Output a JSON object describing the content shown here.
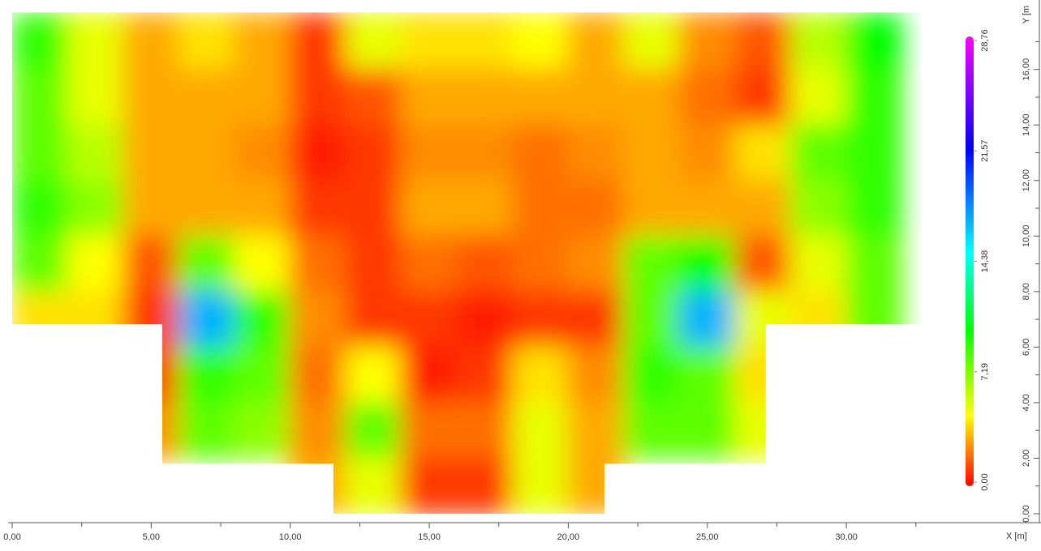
{
  "chart_data": {
    "type": "heatmap",
    "x": [
      1,
      3,
      5,
      7,
      9,
      11,
      13,
      15,
      17,
      19,
      21,
      23,
      25,
      27,
      29,
      31
    ],
    "y": [
      17,
      15,
      13,
      11,
      9,
      7,
      5,
      3,
      1
    ],
    "z": [
      [
        9,
        5,
        3,
        4,
        3,
        1,
        5,
        4,
        4,
        4.5,
        3,
        5,
        2.5,
        1.5,
        6,
        10
      ],
      [
        8,
        5,
        3,
        3,
        3,
        1,
        1.5,
        3,
        3,
        3,
        3,
        3,
        2,
        1,
        5,
        9
      ],
      [
        8,
        6,
        3,
        3,
        2.5,
        0.5,
        1,
        2.5,
        2.5,
        2,
        2.5,
        3,
        2.5,
        4,
        8,
        9
      ],
      [
        9,
        7,
        3,
        3,
        3,
        1,
        1,
        3,
        3,
        2,
        2,
        3,
        3,
        3,
        7,
        9
      ],
      [
        8,
        4.5,
        1.5,
        8,
        4.5,
        2,
        1,
        2,
        1.5,
        2,
        2.5,
        8,
        10,
        1.5,
        5,
        8
      ],
      [
        4,
        4,
        1,
        17,
        9,
        2.5,
        1,
        1,
        0.5,
        1,
        1,
        8,
        17,
        5,
        4,
        8
      ],
      [
        null,
        null,
        1,
        9,
        8,
        2,
        4.5,
        0.5,
        1,
        4,
        2.5,
        9,
        8,
        4,
        null,
        null
      ],
      [
        null,
        null,
        2.5,
        8,
        7,
        2.5,
        8,
        2,
        2,
        5,
        3,
        8,
        8,
        5,
        null,
        null
      ],
      [
        null,
        null,
        null,
        null,
        null,
        3,
        5,
        1,
        1,
        5,
        3,
        null,
        null,
        null,
        null,
        null
      ]
    ],
    "outline": {
      "x": [
        0,
        32.7,
        32.7,
        27.1,
        27.1,
        21.3,
        21.3,
        11.55,
        11.55,
        5.4,
        5.4,
        0
      ],
      "y": [
        18.05,
        18.05,
        6.82,
        6.82,
        1.8,
        1.8,
        0,
        0,
        1.8,
        1.8,
        6.82,
        6.82
      ]
    },
    "xlim": [
      0,
      37
    ],
    "ylim": [
      0,
      18.5
    ],
    "xticks": [
      {
        "value": 0,
        "label": "0,00"
      },
      {
        "value": 5,
        "label": "5,00"
      },
      {
        "value": 10,
        "label": "10,00"
      },
      {
        "value": 15,
        "label": "15,00"
      },
      {
        "value": 20,
        "label": "20,00"
      },
      {
        "value": 25,
        "label": "25,00"
      },
      {
        "value": 30,
        "label": "30,00"
      }
    ],
    "xminorticks": [
      2.5,
      7.5,
      12.5,
      17.5,
      22.5,
      27.5,
      32.5
    ],
    "yticks": [
      {
        "value": 0,
        "label": "0,00"
      },
      {
        "value": 2,
        "label": "2,00"
      },
      {
        "value": 4,
        "label": "4,00"
      },
      {
        "value": 6,
        "label": "6,00"
      },
      {
        "value": 8,
        "label": "8,00"
      },
      {
        "value": 10,
        "label": "10,00"
      },
      {
        "value": 12,
        "label": "12,00"
      },
      {
        "value": 14,
        "label": "14,00"
      },
      {
        "value": 16,
        "label": "16,00"
      }
    ],
    "yminorticks": [
      1,
      3,
      5,
      7,
      9,
      11,
      13,
      15,
      17
    ],
    "xlabel": "X [m]",
    "ylabel": "Y [m",
    "zlim": [
      0,
      28.76
    ],
    "colorscale": [
      [
        0,
        "#ff0000"
      ],
      [
        2.5,
        "#ff8c00"
      ],
      [
        4.5,
        "#ffff00"
      ],
      [
        10,
        "#00ff00"
      ],
      [
        15,
        "#00ffff"
      ],
      [
        21.57,
        "#0000ff"
      ],
      [
        28.76,
        "#ff00ff"
      ]
    ],
    "cticks": [
      {
        "value": 0,
        "label": "0,00"
      },
      {
        "value": 7.19,
        "label": "7,19"
      },
      {
        "value": 14.38,
        "label": "14,38"
      },
      {
        "value": 21.57,
        "label": "21,57"
      },
      {
        "value": 28.76,
        "label": "28,76"
      }
    ]
  }
}
